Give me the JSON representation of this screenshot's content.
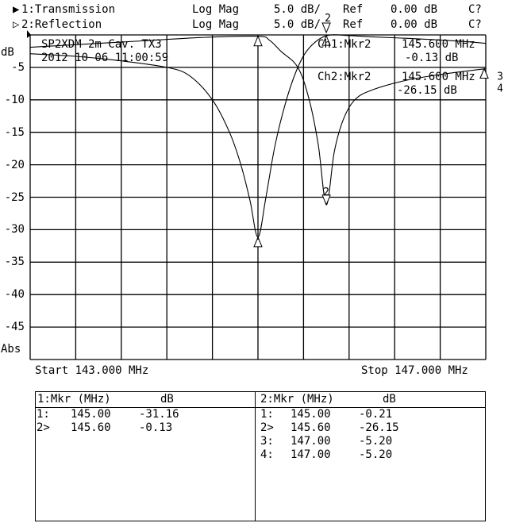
{
  "header": {
    "ch1": {
      "indicator": "▶",
      "label": "1:Transmission",
      "format": "Log Mag",
      "scale": "5.0 dB/",
      "ref_label": "Ref",
      "ref_value": "0.00 dB",
      "cal": "C?"
    },
    "ch2": {
      "indicator": "▷",
      "label": "2:Reflection",
      "format": "Log Mag",
      "scale": "5.0 dB/",
      "ref_label": "Ref",
      "ref_value": "0.00 dB",
      "cal": "C?"
    }
  },
  "plot_title": "SP2XDM 2m Cav. TX3",
  "plot_datetime": "2012 10 06 11:00:59",
  "marker_readouts": {
    "ch1": {
      "label": "Ch1:Mkr2",
      "freq": "145.600 MHz",
      "value": "-0.13 dB"
    },
    "ch2": {
      "label": "Ch2:Mkr2",
      "freq": "145.600 MHz",
      "value": "-26.15 dB"
    }
  },
  "start_label": "Start 143.000 MHz",
  "stop_label": "Stop 147.000 MHz",
  "chart_data": {
    "type": "line",
    "xlabel": "",
    "ylabel": "dB",
    "y_unit_note": "Abs",
    "xlim": [
      143.0,
      147.0
    ],
    "ylim": [
      -50,
      0
    ],
    "y_ticks": [
      "dB",
      "-5",
      "-10",
      "-15",
      "-20",
      "-25",
      "-30",
      "-35",
      "-40",
      "-45",
      "Abs"
    ],
    "grid": true,
    "series": [
      {
        "name": "1:Transmission",
        "color": "#000000",
        "points": [
          [
            143.0,
            -2.9
          ],
          [
            143.4,
            -3.3
          ],
          [
            143.8,
            -4.0
          ],
          [
            144.2,
            -5.0
          ],
          [
            144.4,
            -6.3
          ],
          [
            144.6,
            -10
          ],
          [
            144.75,
            -15
          ],
          [
            144.85,
            -20
          ],
          [
            144.93,
            -25.5
          ],
          [
            145.0,
            -31.16
          ],
          [
            145.07,
            -25
          ],
          [
            145.15,
            -17
          ],
          [
            145.25,
            -10
          ],
          [
            145.35,
            -5
          ],
          [
            145.45,
            -2
          ],
          [
            145.6,
            -0.13
          ],
          [
            145.8,
            -0.1
          ],
          [
            146.0,
            -0.3
          ],
          [
            146.4,
            -0.6
          ],
          [
            146.8,
            -1.0
          ],
          [
            147.0,
            -1.3
          ]
        ]
      },
      {
        "name": "2:Reflection",
        "color": "#000000",
        "points": [
          [
            143.0,
            -1.9
          ],
          [
            143.5,
            -1.4
          ],
          [
            144.0,
            -0.9
          ],
          [
            144.5,
            -0.4
          ],
          [
            145.0,
            -0.21
          ],
          [
            145.1,
            -0.8
          ],
          [
            145.2,
            -2.5
          ],
          [
            145.35,
            -5
          ],
          [
            145.45,
            -10
          ],
          [
            145.53,
            -17
          ],
          [
            145.6,
            -26.15
          ],
          [
            145.67,
            -18
          ],
          [
            145.75,
            -13
          ],
          [
            145.85,
            -10
          ],
          [
            146.0,
            -8.5
          ],
          [
            146.3,
            -7.0
          ],
          [
            146.6,
            -6.1
          ],
          [
            147.0,
            -5.2
          ]
        ]
      }
    ],
    "markers": {
      "ch1": [
        {
          "id": "1",
          "freq": 145.0,
          "value": -31.16
        },
        {
          "id": "2",
          "freq": 145.6,
          "value": -0.13,
          "active": true
        }
      ],
      "ch2": [
        {
          "id": "1",
          "freq": 145.0,
          "value": -0.21
        },
        {
          "id": "2",
          "freq": 145.6,
          "value": -26.15,
          "active": true
        },
        {
          "id": "3",
          "freq": 147.0,
          "value": -5.2
        },
        {
          "id": "4",
          "freq": 147.0,
          "value": -5.2
        }
      ]
    }
  },
  "marker_table": {
    "ch1": {
      "header_mkr": "1:Mkr (MHz)",
      "header_unit": "dB",
      "rows": [
        [
          "1:",
          "145.00",
          "-31.16"
        ],
        [
          "2>",
          "145.60",
          "-0.13"
        ]
      ]
    },
    "ch2": {
      "header_mkr": "2:Mkr (MHz)",
      "header_unit": "dB",
      "rows": [
        [
          "1:",
          "145.00",
          "-0.21"
        ],
        [
          "2>",
          "145.60",
          "-26.15"
        ],
        [
          "3:",
          "147.00",
          "-5.20"
        ],
        [
          "4:",
          "147.00",
          "-5.20"
        ]
      ]
    }
  }
}
